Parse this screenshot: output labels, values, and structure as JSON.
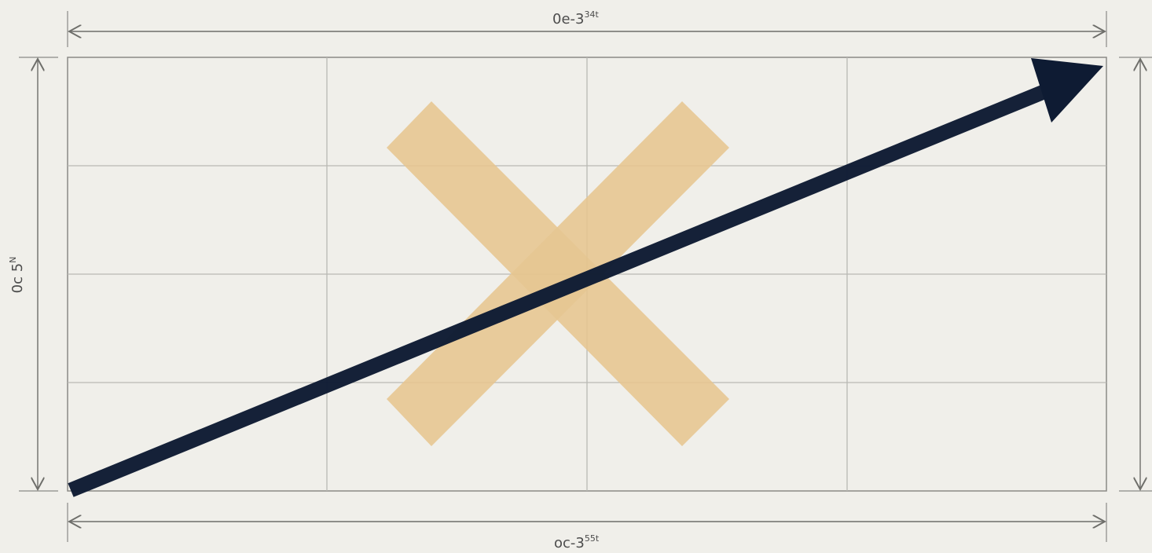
{
  "diagram": {
    "top_dimension": {
      "base": "0e-3",
      "superscript": "34t"
    },
    "bottom_dimension": {
      "base": "oc-3",
      "superscript": "55t"
    },
    "left_dimension": {
      "text": "0c 5",
      "superscript": "N"
    },
    "right_dimension": {
      "text": "",
      "superscript": ""
    },
    "colors": {
      "background": "#f0efea",
      "grid_line": "#b9b9b4",
      "frame_line": "#8a8a86",
      "dimension_line": "#6e6e6a",
      "x_mark": "#e6c58f",
      "arrow": "#0e1b33",
      "overlap": "#4a3b22"
    },
    "grid": {
      "columns": 4,
      "rows": 4
    },
    "shapes": {
      "x_mark": "cross-mark",
      "arrow": "diagonal-arrow"
    }
  }
}
